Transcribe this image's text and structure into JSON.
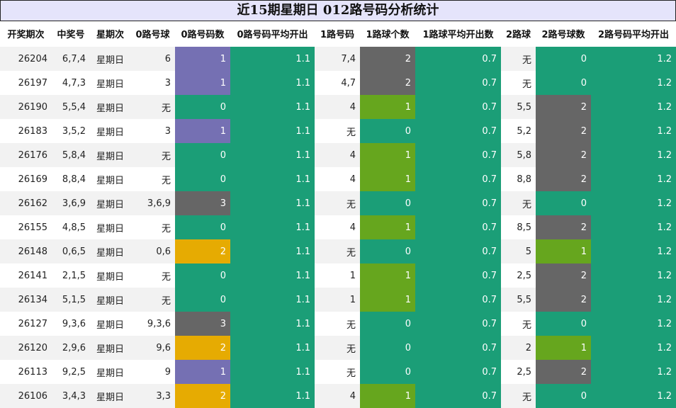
{
  "title": "近15期星期日 012路号码分析统计",
  "colors": {
    "title_bg": "#e5e4fb",
    "purple": "#7570b3",
    "green": "#1b9e77",
    "gray": "#666666",
    "orange": "#e6ab02",
    "lime": "#66a61e"
  },
  "headers": [
    "开奖期次",
    "中奖号",
    "星期次",
    "0路号球",
    "0路号码数",
    "0路号码平均开出",
    "1路号码",
    "1路球个数",
    "1路球平均开出数",
    "2路球",
    "2路号球数",
    "2路号码平均开出"
  ],
  "rows": [
    {
      "issue": "26204",
      "number": "6,7,4",
      "weekday": "星期日",
      "r0": "6",
      "r0_count": "1",
      "r0_avg": "1.1",
      "r1": "7,4",
      "r1_count": "2",
      "r1_avg": "0.7",
      "r2": "无",
      "r2_count": "0",
      "r2_avg": "1.2"
    },
    {
      "issue": "26197",
      "number": "4,7,3",
      "weekday": "星期日",
      "r0": "3",
      "r0_count": "1",
      "r0_avg": "1.1",
      "r1": "4,7",
      "r1_count": "2",
      "r1_avg": "0.7",
      "r2": "无",
      "r2_count": "0",
      "r2_avg": "1.2"
    },
    {
      "issue": "26190",
      "number": "5,5,4",
      "weekday": "星期日",
      "r0": "无",
      "r0_count": "0",
      "r0_avg": "1.1",
      "r1": "4",
      "r1_count": "1",
      "r1_avg": "0.7",
      "r2": "5,5",
      "r2_count": "2",
      "r2_avg": "1.2"
    },
    {
      "issue": "26183",
      "number": "3,5,2",
      "weekday": "星期日",
      "r0": "3",
      "r0_count": "1",
      "r0_avg": "1.1",
      "r1": "无",
      "r1_count": "0",
      "r1_avg": "0.7",
      "r2": "5,2",
      "r2_count": "2",
      "r2_avg": "1.2"
    },
    {
      "issue": "26176",
      "number": "5,8,4",
      "weekday": "星期日",
      "r0": "无",
      "r0_count": "0",
      "r0_avg": "1.1",
      "r1": "4",
      "r1_count": "1",
      "r1_avg": "0.7",
      "r2": "5,8",
      "r2_count": "2",
      "r2_avg": "1.2"
    },
    {
      "issue": "26169",
      "number": "8,8,4",
      "weekday": "星期日",
      "r0": "无",
      "r0_count": "0",
      "r0_avg": "1.1",
      "r1": "4",
      "r1_count": "1",
      "r1_avg": "0.7",
      "r2": "8,8",
      "r2_count": "2",
      "r2_avg": "1.2"
    },
    {
      "issue": "26162",
      "number": "3,6,9",
      "weekday": "星期日",
      "r0": "3,6,9",
      "r0_count": "3",
      "r0_avg": "1.1",
      "r1": "无",
      "r1_count": "0",
      "r1_avg": "0.7",
      "r2": "无",
      "r2_count": "0",
      "r2_avg": "1.2"
    },
    {
      "issue": "26155",
      "number": "4,8,5",
      "weekday": "星期日",
      "r0": "无",
      "r0_count": "0",
      "r0_avg": "1.1",
      "r1": "4",
      "r1_count": "1",
      "r1_avg": "0.7",
      "r2": "8,5",
      "r2_count": "2",
      "r2_avg": "1.2"
    },
    {
      "issue": "26148",
      "number": "0,6,5",
      "weekday": "星期日",
      "r0": "0,6",
      "r0_count": "2",
      "r0_avg": "1.1",
      "r1": "无",
      "r1_count": "0",
      "r1_avg": "0.7",
      "r2": "5",
      "r2_count": "1",
      "r2_avg": "1.2"
    },
    {
      "issue": "26141",
      "number": "2,1,5",
      "weekday": "星期日",
      "r0": "无",
      "r0_count": "0",
      "r0_avg": "1.1",
      "r1": "1",
      "r1_count": "1",
      "r1_avg": "0.7",
      "r2": "2,5",
      "r2_count": "2",
      "r2_avg": "1.2"
    },
    {
      "issue": "26134",
      "number": "5,1,5",
      "weekday": "星期日",
      "r0": "无",
      "r0_count": "0",
      "r0_avg": "1.1",
      "r1": "1",
      "r1_count": "1",
      "r1_avg": "0.7",
      "r2": "5,5",
      "r2_count": "2",
      "r2_avg": "1.2"
    },
    {
      "issue": "26127",
      "number": "9,3,6",
      "weekday": "星期日",
      "r0": "9,3,6",
      "r0_count": "3",
      "r0_avg": "1.1",
      "r1": "无",
      "r1_count": "0",
      "r1_avg": "0.7",
      "r2": "无",
      "r2_count": "0",
      "r2_avg": "1.2"
    },
    {
      "issue": "26120",
      "number": "2,9,6",
      "weekday": "星期日",
      "r0": "9,6",
      "r0_count": "2",
      "r0_avg": "1.1",
      "r1": "无",
      "r1_count": "0",
      "r1_avg": "0.7",
      "r2": "2",
      "r2_count": "1",
      "r2_avg": "1.2"
    },
    {
      "issue": "26113",
      "number": "9,2,5",
      "weekday": "星期日",
      "r0": "9",
      "r0_count": "1",
      "r0_avg": "1.1",
      "r1": "无",
      "r1_count": "0",
      "r1_avg": "0.7",
      "r2": "2,5",
      "r2_count": "2",
      "r2_avg": "1.2"
    },
    {
      "issue": "26106",
      "number": "3,4,3",
      "weekday": "星期日",
      "r0": "3,3",
      "r0_count": "2",
      "r0_avg": "1.1",
      "r1": "4",
      "r1_count": "1",
      "r1_avg": "0.7",
      "r2": "无",
      "r2_count": "0",
      "r2_avg": "1.2"
    }
  ]
}
